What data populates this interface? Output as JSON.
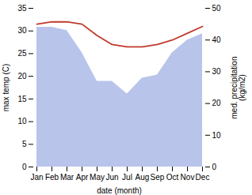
{
  "chart_data": {
    "type": "line",
    "categories": [
      "Jan",
      "Feb",
      "Mar",
      "Apr",
      "May",
      "Jun",
      "Jul",
      "Aug",
      "Sep",
      "Oct",
      "Nov",
      "Dec"
    ],
    "xlabel": "date (month)",
    "ylabel": "max temp (C)",
    "y2label": "med. precipitation\n(kg/m2)",
    "ylim": [
      0,
      35
    ],
    "yticks": [
      0,
      5,
      10,
      15,
      20,
      25,
      30,
      35
    ],
    "y2lim": [
      0,
      50
    ],
    "y2ticks": [
      0,
      10,
      20,
      30,
      40,
      50
    ],
    "grid": false,
    "series": [
      {
        "type": "area",
        "axis": "y2",
        "color": "#b8c4ea",
        "values": [
          44.0,
          44.0,
          43.0,
          36.0,
          27.0,
          27.0,
          23.0,
          28.0,
          29.0,
          36.0,
          40.0,
          42.0
        ]
      },
      {
        "type": "line",
        "color": "#c0392b",
        "values": [
          31.5,
          32.0,
          32.0,
          31.5,
          29.0,
          27.0,
          26.5,
          26.5,
          27.0,
          28.0,
          29.5,
          31.0
        ]
      }
    ]
  }
}
